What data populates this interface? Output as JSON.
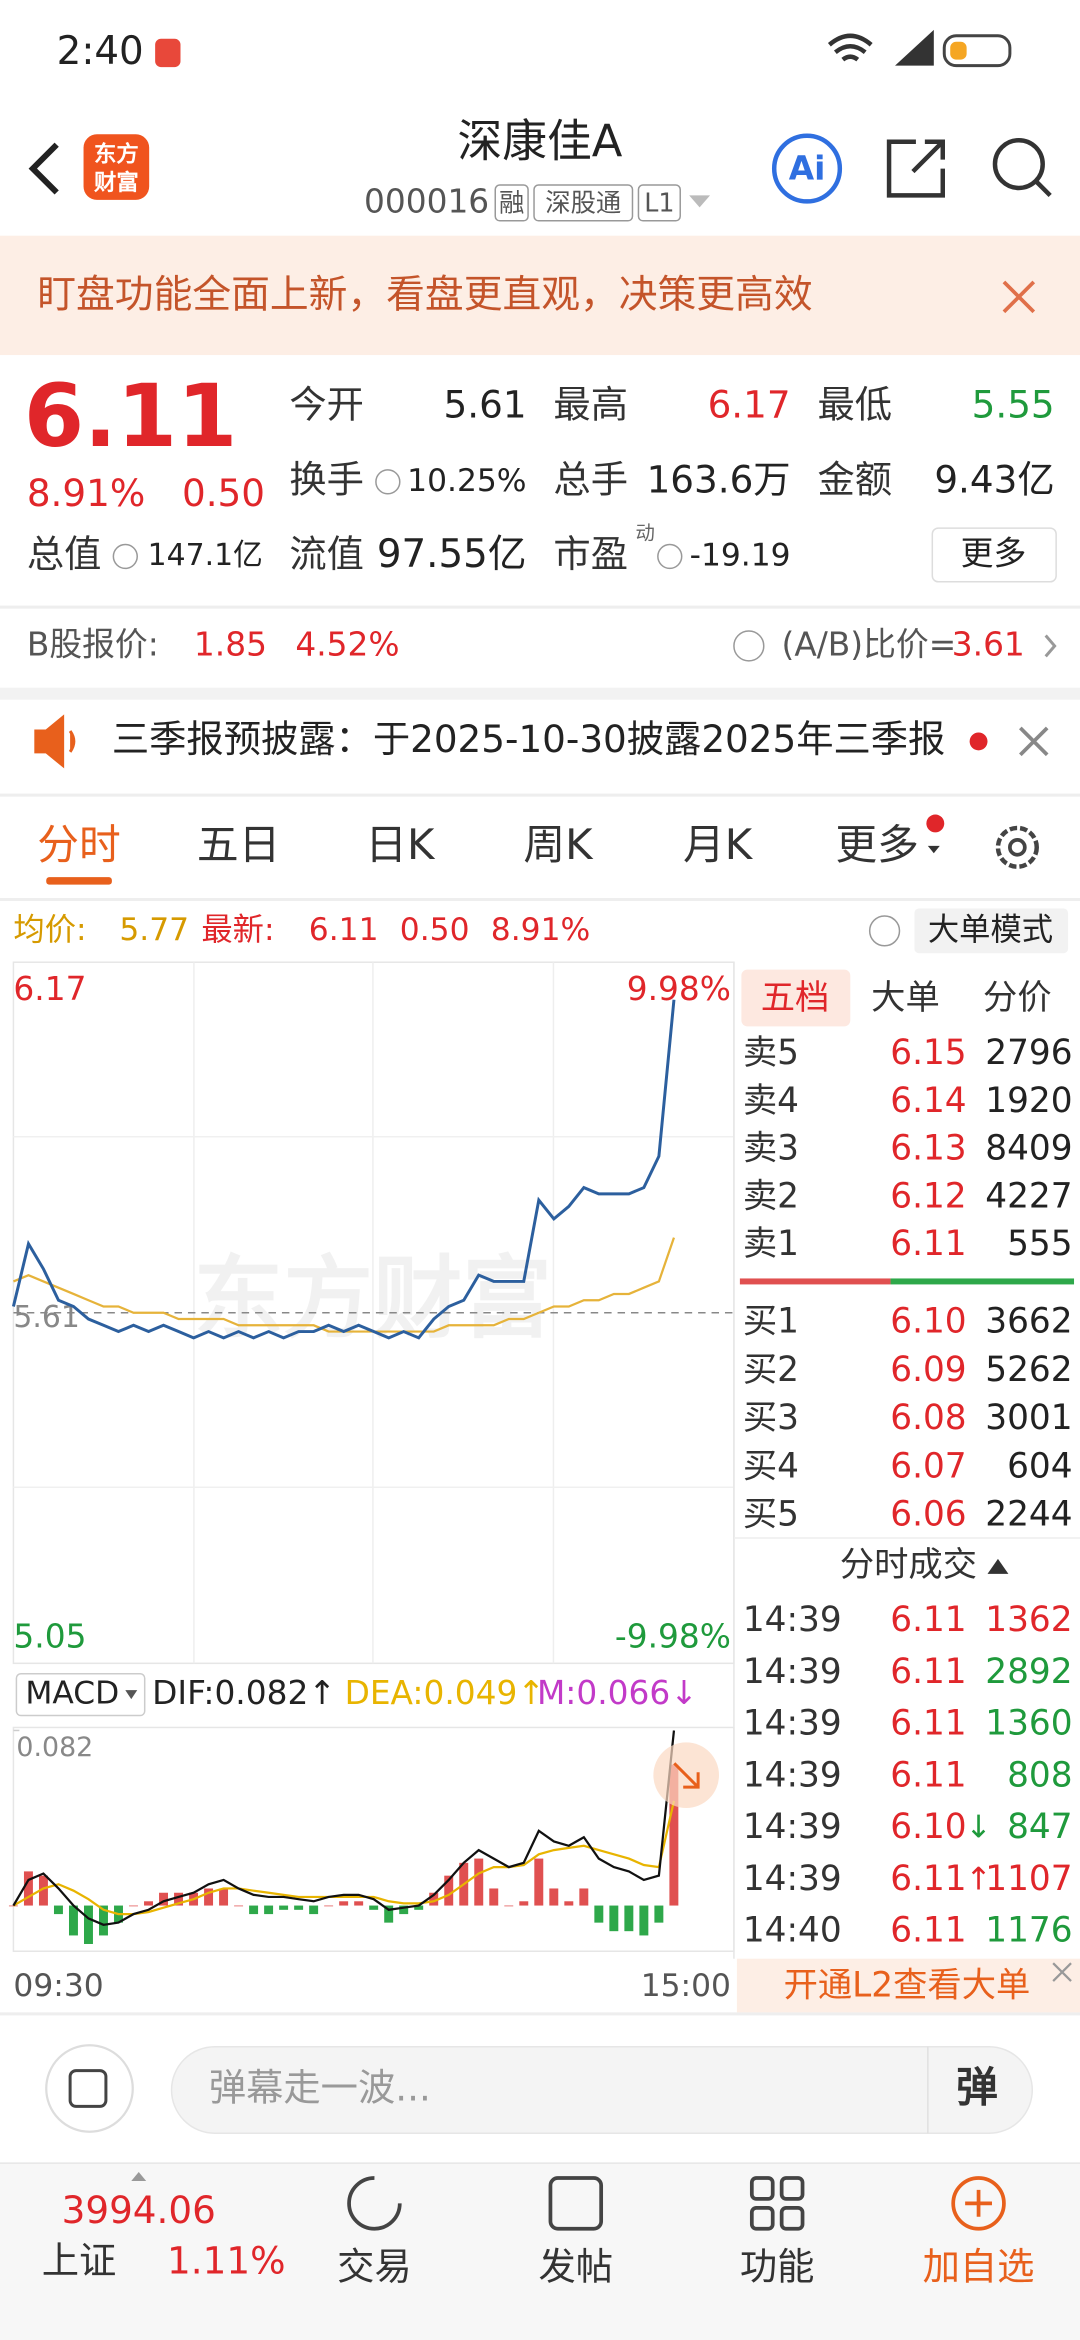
{
  "status_bar": {
    "time": "2:40"
  },
  "header": {
    "logo": [
      "东方",
      "财富"
    ],
    "title": "深康佳A",
    "code": "000016",
    "tags": [
      "融",
      "深股通",
      "L1"
    ],
    "ai": "Ai"
  },
  "banner": {
    "text": "盯盘功能全面上新，看盘更直观，决策更高效"
  },
  "quote": {
    "price": "6.11",
    "change_pct": "8.91%",
    "change": "0.50",
    "total_value_label": "总值",
    "total_value": "147.1亿",
    "fields": [
      {
        "label": "今开",
        "value": "5.61"
      },
      {
        "label": "最高",
        "value": "6.17"
      },
      {
        "label": "最低",
        "value": "5.55"
      },
      {
        "label": "换手",
        "value": "10.25%"
      },
      {
        "label": "总手",
        "value": "163.6万"
      },
      {
        "label": "金额",
        "value": "9.43亿"
      },
      {
        "label": "流值",
        "value": "97.55亿"
      },
      {
        "label": "市盈",
        "sup": "动",
        "value": "-19.19"
      }
    ],
    "more": "更多"
  },
  "b_share": {
    "label": "B股报价:",
    "price": "1.85",
    "pct": "4.52%",
    "ratio_label": "(A/B)比价=",
    "ratio": "3.61"
  },
  "notice": {
    "text": "三季报预披露：于2025-10-30披露2025年三季报"
  },
  "tabs": [
    "分时",
    "五日",
    "日K",
    "周K",
    "月K",
    "更多"
  ],
  "info": {
    "avg_label": "均价:",
    "avg": "5.77",
    "latest_label": "最新:",
    "latest": "6.11",
    "change": "0.50",
    "pct": "8.91%",
    "mode": "大单模式"
  },
  "intraday": {
    "top_label": 6.17,
    "top_pct": "9.98%",
    "bottom_label": 5.05,
    "bottom_pct": "-9.98%",
    "ref": 5.61,
    "watermark": "东方财富",
    "start": "09:30",
    "end": "15:00",
    "price": [
      5.62,
      5.72,
      5.68,
      5.63,
      5.62,
      5.6,
      5.59,
      5.58,
      5.59,
      5.58,
      5.59,
      5.58,
      5.57,
      5.58,
      5.57,
      5.58,
      5.57,
      5.58,
      5.57,
      5.58,
      5.58,
      5.59,
      5.58,
      5.59,
      5.58,
      5.57,
      5.58,
      5.57,
      5.6,
      5.62,
      5.63,
      5.67,
      5.66,
      5.66,
      5.66,
      5.79,
      5.76,
      5.78,
      5.81,
      5.8,
      5.8,
      5.8,
      5.81,
      5.86,
      6.11
    ],
    "avg": [
      5.66,
      5.67,
      5.66,
      5.65,
      5.64,
      5.63,
      5.62,
      5.62,
      5.61,
      5.61,
      5.61,
      5.6,
      5.6,
      5.6,
      5.6,
      5.59,
      5.59,
      5.59,
      5.59,
      5.59,
      5.59,
      5.58,
      5.58,
      5.58,
      5.58,
      5.58,
      5.58,
      5.58,
      5.58,
      5.59,
      5.59,
      5.59,
      5.59,
      5.6,
      5.6,
      5.61,
      5.62,
      5.62,
      5.63,
      5.63,
      5.64,
      5.64,
      5.65,
      5.66,
      5.73
    ]
  },
  "macd": {
    "selector": "MACD",
    "dif_label": "DIF:0.082↑",
    "dea_label": "DEA:0.049↑",
    "m_label": "M:0.066↓",
    "ylim": [
      -0.02,
      0.082
    ],
    "dif": [
      0,
      0.012,
      0.015,
      0.008,
      0,
      -0.006,
      -0.009,
      -0.008,
      -0.004,
      -0.002,
      0.002,
      0.004,
      0.006,
      0.01,
      0.012,
      0.008,
      0.005,
      0.004,
      0.004,
      0.003,
      0.002,
      0.004,
      0.005,
      0.005,
      0.003,
      -0.002,
      -0.001,
      0,
      0.005,
      0.012,
      0.02,
      0.026,
      0.022,
      0.018,
      0.02,
      0.035,
      0.03,
      0.028,
      0.032,
      0.022,
      0.018,
      0.016,
      0.012,
      0.014,
      0.082
    ],
    "dea": [
      0,
      0.004,
      0.008,
      0.01,
      0.007,
      0.003,
      -0.002,
      -0.004,
      -0.004,
      -0.003,
      -0.001,
      0.001,
      0.003,
      0.006,
      0.008,
      0.008,
      0.007,
      0.006,
      0.005,
      0.004,
      0.004,
      0.004,
      0.004,
      0.004,
      0.004,
      0.002,
      0.001,
      0.001,
      0.002,
      0.005,
      0.01,
      0.015,
      0.018,
      0.018,
      0.019,
      0.024,
      0.026,
      0.027,
      0.028,
      0.026,
      0.024,
      0.022,
      0.019,
      0.018,
      0.049
    ],
    "hist": [
      0,
      0.016,
      0.014,
      -0.004,
      -0.014,
      -0.018,
      -0.014,
      -0.008,
      0,
      0.002,
      0.006,
      0.006,
      0.006,
      0.008,
      0.008,
      0,
      -0.004,
      -0.004,
      -0.002,
      -0.002,
      -0.004,
      0,
      0.002,
      0.002,
      -0.002,
      -0.008,
      -0.004,
      -0.002,
      0.006,
      0.014,
      0.02,
      0.022,
      0.008,
      0,
      0.002,
      0.022,
      0.008,
      0.002,
      0.008,
      -0.008,
      -0.012,
      -0.012,
      -0.014,
      -0.008,
      0.066
    ]
  },
  "order_book": {
    "tabs": [
      "五档",
      "大单",
      "分价"
    ],
    "asks": [
      [
        "卖5",
        "6.15",
        "2796"
      ],
      [
        "卖4",
        "6.14",
        "1920"
      ],
      [
        "卖3",
        "6.13",
        "8409"
      ],
      [
        "卖2",
        "6.12",
        "4227"
      ],
      [
        "卖1",
        "6.11",
        "555"
      ]
    ],
    "bids": [
      [
        "买1",
        "6.10",
        "3662"
      ],
      [
        "买2",
        "6.09",
        "5262"
      ],
      [
        "买3",
        "6.08",
        "3001"
      ],
      [
        "买4",
        "6.07",
        "604"
      ],
      [
        "买5",
        "6.06",
        "2244"
      ]
    ]
  },
  "trades": {
    "title": "分时成交",
    "rows": [
      {
        "time": "14:39",
        "price": "6.11",
        "volume": "1362"
      },
      {
        "time": "14:39",
        "price": "6.11",
        "volume": "2892"
      },
      {
        "time": "14:39",
        "price": "6.11",
        "volume": "1360"
      },
      {
        "time": "14:39",
        "price": "6.11",
        "volume": "808"
      },
      {
        "time": "14:39",
        "price": "6.10",
        "arrow": "↓",
        "volume": "847"
      },
      {
        "time": "14:39",
        "price": "6.11",
        "arrow": "↑",
        "volume": "1107"
      },
      {
        "time": "14:40",
        "price": "6.11",
        "volume": "1176"
      }
    ]
  },
  "l2_banner": "开通L2查看大单",
  "comment": {
    "placeholder": "弹幕走一波...",
    "button": "弹"
  },
  "bottom_nav": {
    "index": {
      "value": "3994.06",
      "name": "上证",
      "pct": "1.11%"
    },
    "items": [
      "交易",
      "发帖",
      "功能",
      "加自选"
    ]
  }
}
